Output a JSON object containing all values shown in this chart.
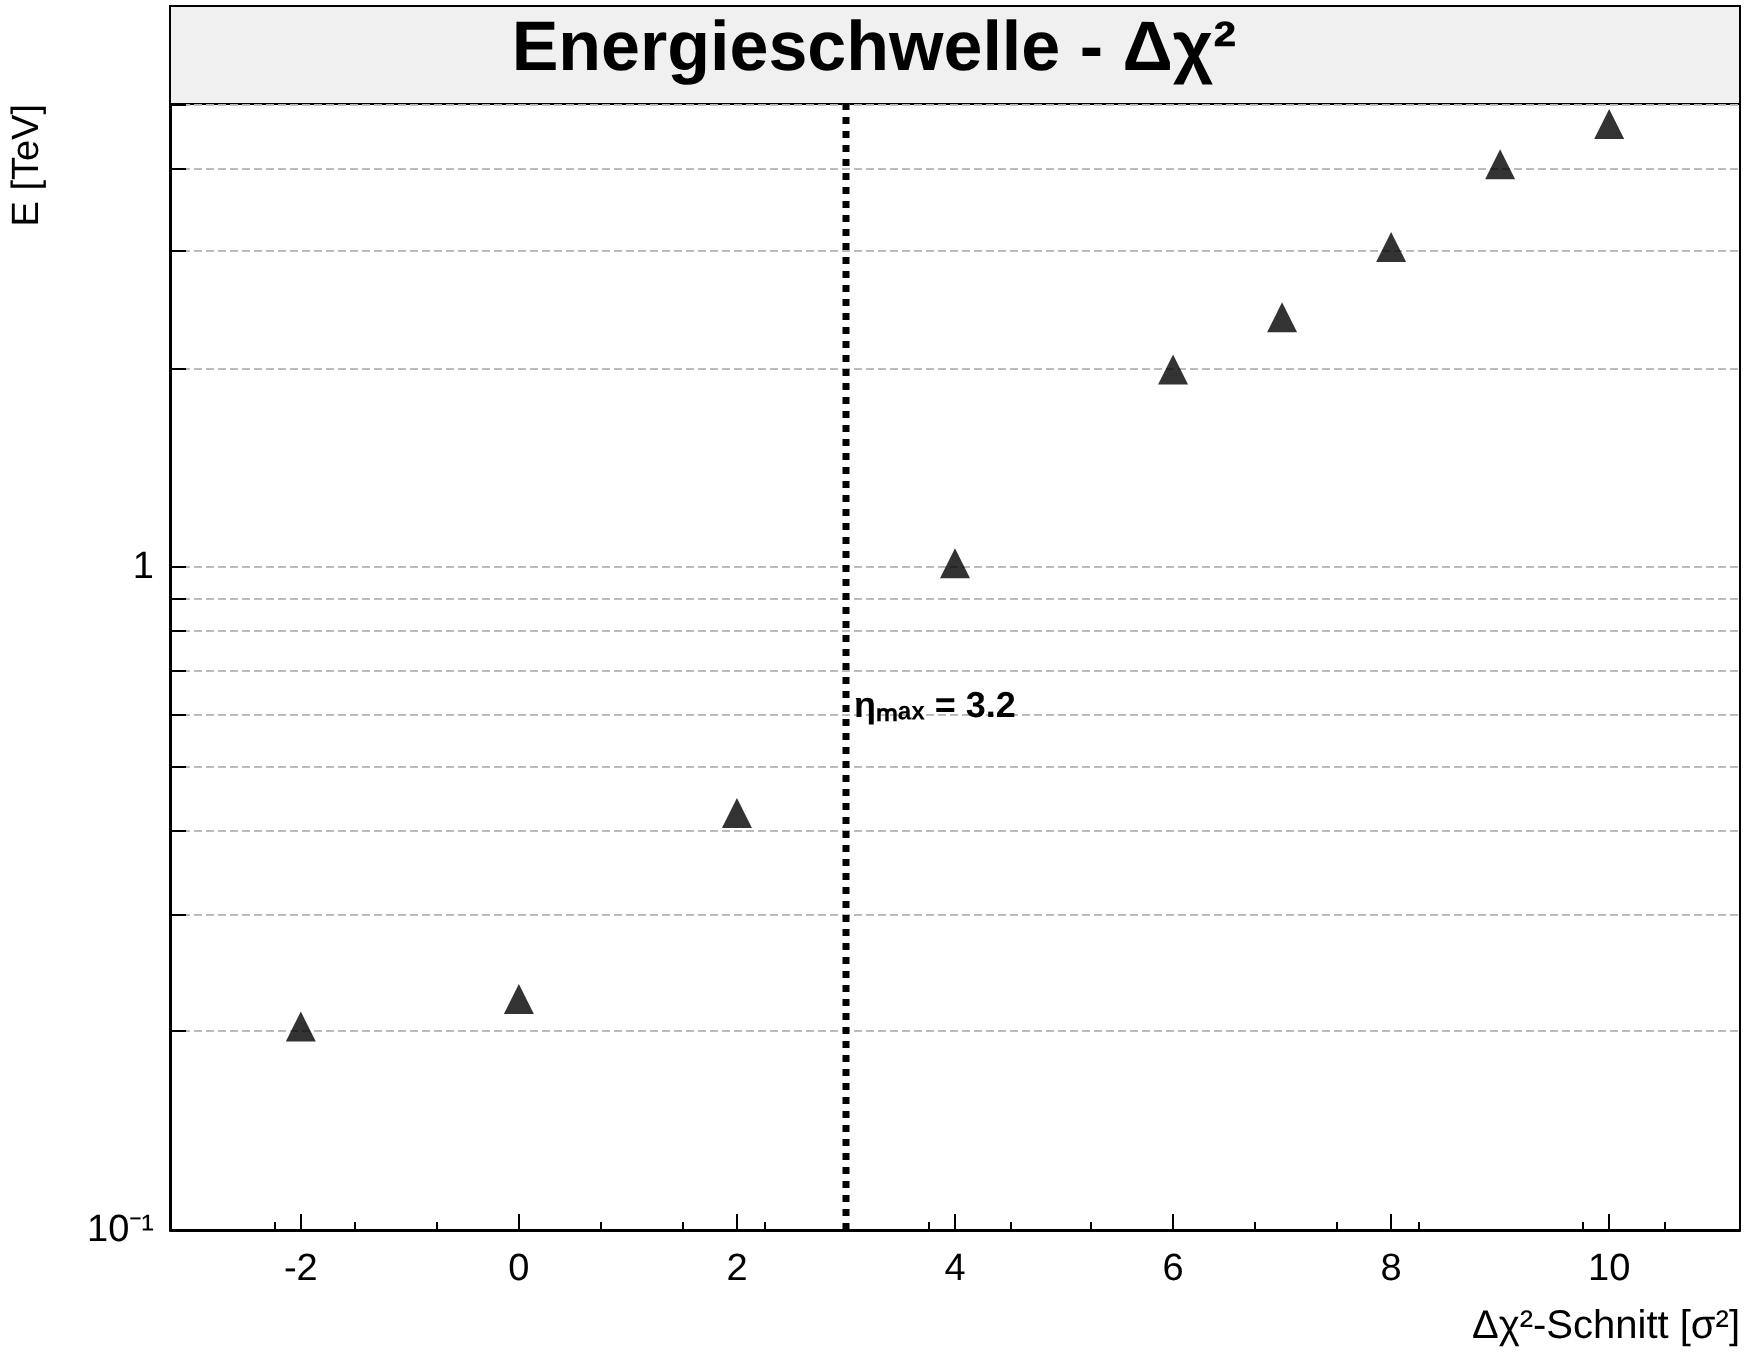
{
  "chart_data": {
    "type": "scatter",
    "title": "Energieschwelle - Δχ²",
    "xlabel": "Δχ²-Schnitt [σ²]",
    "ylabel": "E [TeV]",
    "annotations": [
      "ηₘₐₓ = 3.2"
    ],
    "x": [
      -2,
      0,
      2,
      4,
      6,
      7,
      8,
      9,
      10
    ],
    "series": [
      {
        "color": "#000000",
        "values": [
          0.2,
          0.22,
          0.42,
          1.0,
          1.96,
          2.35,
          3.0,
          4.0,
          4.6
        ]
      }
    ],
    "marker": "triangle",
    "log": "y",
    "grid": "y",
    "xlim": [
      -3.2,
      11.2
    ],
    "xticks": [
      -2,
      0,
      2,
      4,
      6,
      8,
      10
    ],
    "ylim": [
      0.1,
      5
    ],
    "yticks": [
      {
        "value": 0.1,
        "label": "10⁻¹"
      },
      {
        "value": 0.2,
        "label": null
      },
      {
        "value": 0.3,
        "label": null
      },
      {
        "value": 0.4,
        "label": null
      },
      {
        "value": 0.5,
        "label": null
      },
      {
        "value": 0.6,
        "label": null
      },
      {
        "value": 0.7,
        "label": null
      },
      {
        "value": 0.8,
        "label": null
      },
      {
        "value": 0.9,
        "label": null
      },
      1,
      {
        "value": 2,
        "label": null
      },
      {
        "value": 3,
        "label": null
      },
      {
        "value": 4,
        "label": null
      },
      {
        "value": 5,
        "label": null
      }
    ],
    "ref_lines": [
      {
        "axis": "x",
        "value": 3,
        "color": "#000000",
        "line_style": "dotted"
      }
    ]
  }
}
